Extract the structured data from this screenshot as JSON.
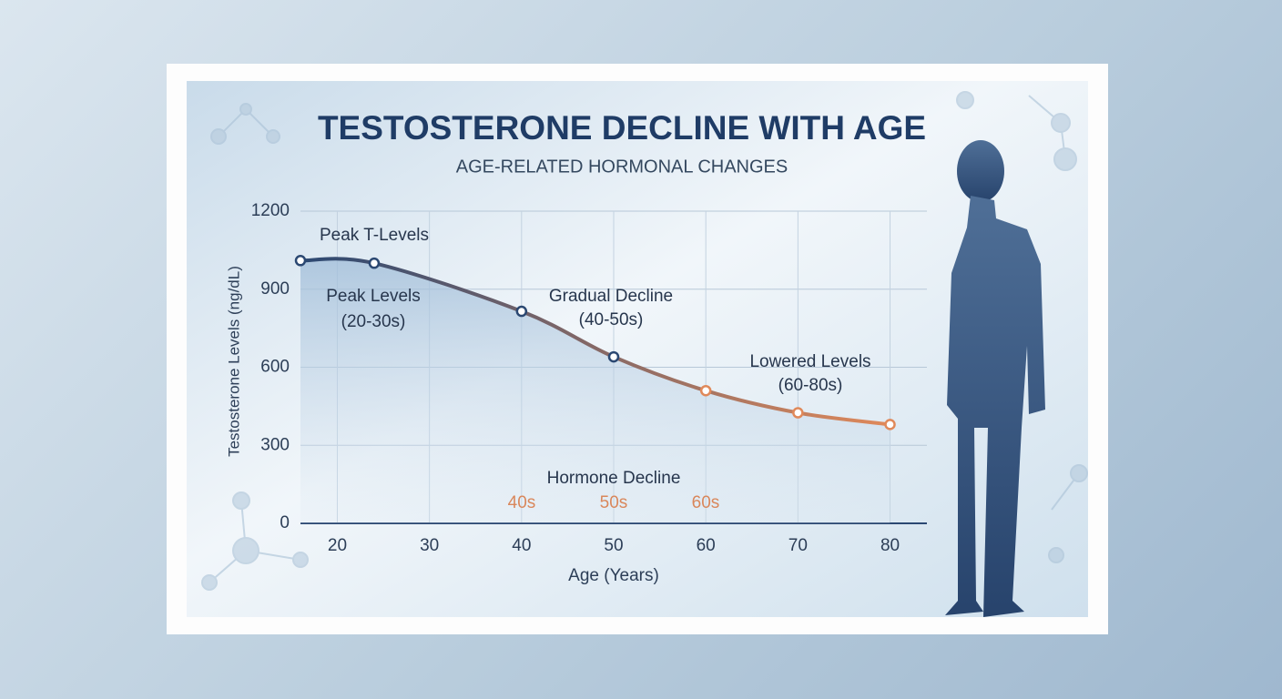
{
  "chart_data": {
    "type": "line",
    "title": "TESTOSTERONE DECLINE WITH AGE",
    "subtitle": "AGE-RELATED HORMONAL CHANGES",
    "x_label": "Age (Years)",
    "y_label": "Testosterone Levels (ng/dL)",
    "xlim": [
      16,
      84
    ],
    "xticks": [
      20,
      30,
      40,
      50,
      60,
      70,
      80
    ],
    "ylim": [
      0,
      1200
    ],
    "yticks": [
      0,
      300,
      600,
      900,
      1200
    ],
    "grid": true,
    "series": [
      {
        "x": [
          16,
          24,
          40,
          50,
          60,
          70,
          80
        ],
        "values": [
          1010,
          1000,
          815,
          640,
          510,
          425,
          380
        ],
        "colors": [
          "#2b4872",
          "#e0895a"
        ]
      }
    ],
    "annotations": [
      "Peak T-Levels",
      "Peak Levels",
      "(20-30s)",
      "Gradual Decline",
      "(40-50s)",
      "Lowered Levels",
      "(60-80s)",
      "Hormone Decline",
      "40s",
      "50s",
      "60s"
    ]
  }
}
